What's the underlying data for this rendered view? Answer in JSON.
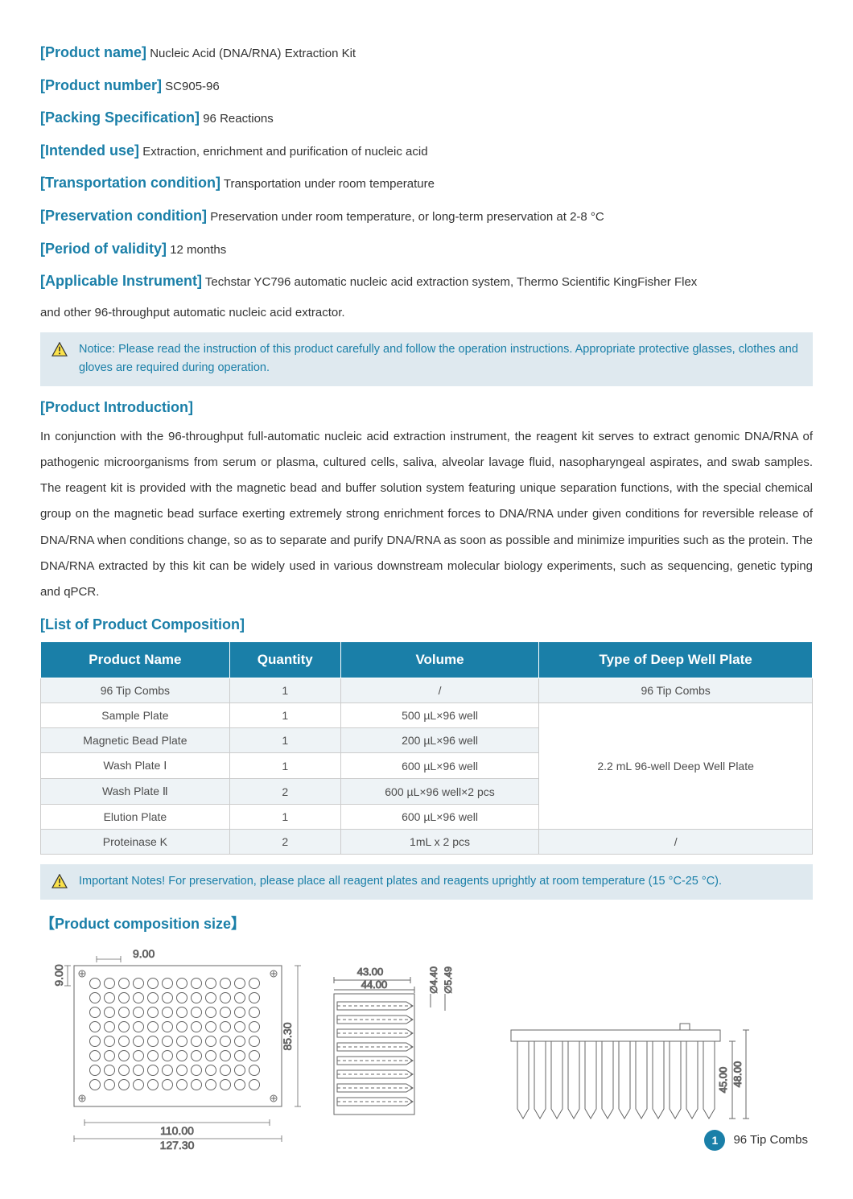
{
  "meta": {
    "product_name_label": "[Product name]",
    "product_name_value": "Nucleic Acid (DNA/RNA) Extraction Kit",
    "product_number_label": "[Product number]",
    "product_number_value": "SC905-96",
    "packing_label": "[Packing Specification]",
    "packing_value": "96 Reactions",
    "intended_label": "[Intended use]",
    "intended_value": "Extraction, enrichment and purification of nucleic acid",
    "transport_label": "[Transportation condition]",
    "transport_value": "Transportation under room temperature",
    "preserve_label": "[Preservation condition]",
    "preserve_value": "Preservation under room temperature, or long-term preservation at 2-8 °C",
    "validity_label": "[Period of validity]",
    "validity_value": "12 months",
    "instrument_label": "[Applicable Instrument]",
    "instrument_value": "Techstar YC796 automatic nucleic acid extraction system, Thermo Scientific KingFisher Flex",
    "instrument_continue": "and other 96-throughput automatic nucleic acid extractor."
  },
  "notice1": "Notice: Please read the instruction of this product carefully and follow the operation instructions. Appropriate protective glasses, clothes and gloves are required during operation.",
  "intro_heading": "[Product Introduction]",
  "intro_text": "In conjunction with the 96-throughput full-automatic nucleic acid extraction instrument, the reagent kit serves to extract genomic DNA/RNA of pathogenic microorganisms from serum or plasma, cultured cells, saliva, alveolar lavage fluid, nasopharyngeal aspirates, and swab samples. The reagent kit is provided with the magnetic bead and buffer solution system featuring unique separation functions, with the special chemical group on the magnetic bead surface exerting extremely strong enrichment forces to DNA/RNA under given conditions for reversible release of DNA/RNA when conditions change, so as to separate and purify DNA/RNA as soon as possible and minimize impurities such as the protein. The DNA/RNA extracted by this kit can be widely used in various downstream molecular biology experiments, such as sequencing, genetic typing and qPCR.",
  "comp_heading": "[List of Product Composition]",
  "table": {
    "headers": [
      "Product Name",
      "Quantity",
      "Volume",
      "Type of Deep Well Plate"
    ],
    "rows": [
      {
        "name": "96 Tip Combs",
        "qty": "1",
        "vol": "/",
        "type": "96 Tip Combs",
        "alt": true
      },
      {
        "name": "Sample Plate",
        "qty": "1",
        "vol": "500 µL×96 well",
        "alt": false
      },
      {
        "name": "Magnetic Bead Plate",
        "qty": "1",
        "vol": "200 µL×96 well",
        "alt": true
      },
      {
        "name": "Wash Plate Ⅰ",
        "qty": "1",
        "vol": "600 µL×96 well",
        "alt": false
      },
      {
        "name": "Wash Plate Ⅱ",
        "qty": "2",
        "vol": "600 µL×96 well×2 pcs",
        "alt": true
      },
      {
        "name": "Elution Plate",
        "qty": "1",
        "vol": "600 µL×96 well",
        "alt": false
      },
      {
        "name": "Proteinase K",
        "qty": "2",
        "vol": "1mL x 2 pcs",
        "type": "/",
        "alt": true
      }
    ],
    "merged_type": "2.2 mL 96-well Deep Well Plate"
  },
  "notice2": "Important Notes! For preservation, please place all reagent plates and reagents uprightly at room temperature (15 °C-25 °C).",
  "size_heading": "【Product composition size】",
  "diagram": {
    "top_view": {
      "width_total": "127.30",
      "width_inner": "110.00",
      "height": "85.30",
      "pitch_x": "9.00",
      "pitch_y": "9.00",
      "cols": 12,
      "rows": 8
    },
    "side_view": {
      "w1": "43.00",
      "w2": "44.00",
      "d1": "∅4.40",
      "d2": "∅5.49"
    },
    "front_view": {
      "h1": "45.00",
      "h2": "48.00"
    }
  },
  "footer": {
    "page": "1",
    "label": "96 Tip Combs"
  },
  "colors": {
    "accent": "#1a7fa8",
    "notice_bg": "#dfe9ef",
    "alt_row": "#eef3f6",
    "warn_border": "#333",
    "warn_fill": "#fbe24a"
  }
}
